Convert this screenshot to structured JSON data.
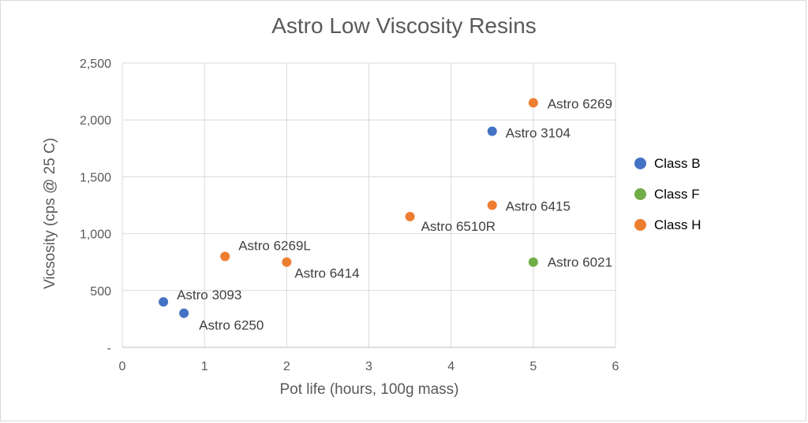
{
  "chart_data": {
    "type": "scatter",
    "title": "Astro Low Viscosity Resins",
    "xlabel": "Pot life (hours, 100g mass)",
    "ylabel": "Vicsosity (cps @ 25 C)",
    "xlim": [
      0,
      6
    ],
    "ylim": [
      0,
      2500
    ],
    "x_ticks": [
      "0",
      "1",
      "2",
      "3",
      "4",
      "5",
      "6"
    ],
    "y_ticks": [
      "-",
      "500",
      "1,000",
      "1,500",
      "2,000",
      "2,500"
    ],
    "grid": true,
    "legend_position": "right",
    "series": [
      {
        "name": "Class B",
        "color": "#4472c4",
        "points": [
          {
            "label": "Astro 3093",
            "x": 0.5,
            "y": 400
          },
          {
            "label": "Astro 6250",
            "x": 0.75,
            "y": 300
          },
          {
            "label": "Astro 3104",
            "x": 4.5,
            "y": 1900
          }
        ]
      },
      {
        "name": "Class F",
        "color": "#70ad47",
        "points": [
          {
            "label": "Astro 6021",
            "x": 5.0,
            "y": 750
          }
        ]
      },
      {
        "name": "Class H",
        "color": "#ed7d31",
        "points": [
          {
            "label": "Astro 6269L",
            "x": 1.25,
            "y": 800
          },
          {
            "label": "Astro 6414",
            "x": 2.0,
            "y": 750
          },
          {
            "label": "Astro 6510R",
            "x": 3.5,
            "y": 1150
          },
          {
            "label": "Astro 6415",
            "x": 4.5,
            "y": 1250
          },
          {
            "label": "Astro 6269",
            "x": 5.0,
            "y": 2150
          }
        ]
      }
    ]
  }
}
